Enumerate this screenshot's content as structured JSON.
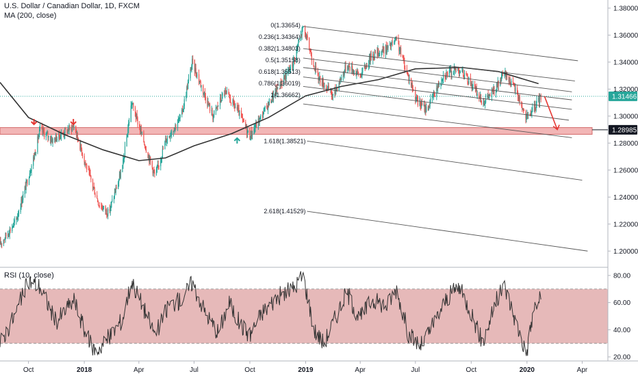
{
  "header": {
    "symbol_title": "U.S. Dollar / Canadian Dollar, 1D, FXCM",
    "ma_label": "MA (200, close)",
    "rsi_label": "RSI (10, close)"
  },
  "price_panel": {
    "ylim": [
      1.19,
      1.385
    ],
    "y_ticks": [
      "1.38000",
      "1.36000",
      "1.34000",
      "1.32000",
      "1.30000",
      "1.28000",
      "1.26000",
      "1.24000",
      "1.22000",
      "1.20000"
    ],
    "y_tick_values": [
      1.38,
      1.36,
      1.34,
      1.32,
      1.3,
      1.28,
      1.26,
      1.24,
      1.22,
      1.2
    ],
    "current_price_label": "1.31466",
    "current_price": 1.31466,
    "support_price_label": "1.28985",
    "support_price": 1.28985
  },
  "rsi_panel": {
    "ylim": [
      17,
      86
    ],
    "y_ticks": [
      "80.00",
      "60.00",
      "40.00",
      "20.00"
    ],
    "y_tick_values": [
      80,
      60,
      40,
      20
    ],
    "band": [
      30,
      70
    ]
  },
  "x_axis": {
    "labels": [
      "Oct",
      "2018",
      "Apr",
      "Jul",
      "Oct",
      "2019",
      "Apr",
      "Jul",
      "Oct",
      "2020",
      "Apr"
    ]
  },
  "fib_levels": [
    {
      "label": "0(1.33654)"
    },
    {
      "label": "0.236(1.34364)"
    },
    {
      "label": "0.382(1.34803)"
    },
    {
      "label": "0.5(1.35158)"
    },
    {
      "label": "0.618(1.35513)"
    },
    {
      "label": "0.786(1.36019)"
    },
    {
      "label": "1(1.36662)"
    },
    {
      "label": "1.618(1.38521)"
    },
    {
      "label": "2.618(1.41529)"
    }
  ],
  "colors": {
    "up": "#26a69a",
    "down": "#ef5350",
    "ma": "#333333",
    "support_zone": "#f2b6b6",
    "rsi_band": "#e0a7a7",
    "price_badge": "#26a69a",
    "support_badge": "#131722",
    "arrow_red": "#e53935",
    "arrow_teal": "#26a69a"
  },
  "chart_data": {
    "type": "candlestick",
    "title": "U.S. Dollar / Canadian Dollar, 1D, FXCM",
    "ma_series": {
      "name": "MA (200, close)",
      "points": [
        [
          "2017-08-15",
          1.325
        ],
        [
          "2017-10-01",
          1.299
        ],
        [
          "2017-12-01",
          1.286
        ],
        [
          "2018-02-01",
          1.275
        ],
        [
          "2018-04-01",
          1.267
        ],
        [
          "2018-05-15",
          1.269
        ],
        [
          "2018-07-01",
          1.278
        ],
        [
          "2018-09-01",
          1.287
        ],
        [
          "2018-11-01",
          1.299
        ],
        [
          "2019-01-01",
          1.315
        ],
        [
          "2019-03-01",
          1.322
        ],
        [
          "2019-05-01",
          1.327
        ],
        [
          "2019-07-01",
          1.335
        ],
        [
          "2019-09-15",
          1.336
        ],
        [
          "2019-11-15",
          1.333
        ],
        [
          "2020-01-20",
          1.324
        ]
      ]
    },
    "price_path": [
      [
        "2017-08-15",
        1.205
      ],
      [
        "2017-09-10",
        1.222
      ],
      [
        "2017-10-10",
        1.27
      ],
      [
        "2017-10-20",
        1.29
      ],
      [
        "2017-11-10",
        1.282
      ],
      [
        "2017-12-15",
        1.293
      ],
      [
        "2018-01-05",
        1.262
      ],
      [
        "2018-01-25",
        1.235
      ],
      [
        "2018-02-10",
        1.228
      ],
      [
        "2018-03-05",
        1.262
      ],
      [
        "2018-03-20",
        1.31
      ],
      [
        "2018-04-10",
        1.28
      ],
      [
        "2018-04-28",
        1.255
      ],
      [
        "2018-05-15",
        1.282
      ],
      [
        "2018-06-10",
        1.3
      ],
      [
        "2018-06-28",
        1.34
      ],
      [
        "2018-07-15",
        1.32
      ],
      [
        "2018-08-01",
        1.3
      ],
      [
        "2018-08-20",
        1.318
      ],
      [
        "2018-09-10",
        1.305
      ],
      [
        "2018-10-01",
        1.285
      ],
      [
        "2018-10-20",
        1.3
      ],
      [
        "2018-11-15",
        1.32
      ],
      [
        "2018-12-10",
        1.338
      ],
      [
        "2018-12-28",
        1.366
      ],
      [
        "2019-01-20",
        1.33
      ],
      [
        "2019-02-15",
        1.315
      ],
      [
        "2019-03-10",
        1.338
      ],
      [
        "2019-04-01",
        1.33
      ],
      [
        "2019-04-20",
        1.345
      ],
      [
        "2019-05-15",
        1.35
      ],
      [
        "2019-05-31",
        1.356
      ],
      [
        "2019-06-15",
        1.335
      ],
      [
        "2019-07-05",
        1.31
      ],
      [
        "2019-07-20",
        1.305
      ],
      [
        "2019-08-15",
        1.33
      ],
      [
        "2019-09-10",
        1.335
      ],
      [
        "2019-09-30",
        1.325
      ],
      [
        "2019-10-20",
        1.31
      ],
      [
        "2019-11-10",
        1.32
      ],
      [
        "2019-11-25",
        1.332
      ],
      [
        "2019-12-15",
        1.318
      ],
      [
        "2019-12-31",
        1.298
      ],
      [
        "2020-01-15",
        1.307
      ],
      [
        "2020-01-24",
        1.3147
      ]
    ],
    "rsi_path": [
      [
        "2017-08-15",
        30
      ],
      [
        "2017-09-10",
        52
      ],
      [
        "2017-10-01",
        76
      ],
      [
        "2017-10-20",
        72
      ],
      [
        "2017-11-15",
        46
      ],
      [
        "2017-12-15",
        62
      ],
      [
        "2018-01-05",
        35
      ],
      [
        "2018-01-20",
        24
      ],
      [
        "2018-02-10",
        34
      ],
      [
        "2018-03-05",
        48
      ],
      [
        "2018-03-20",
        76
      ],
      [
        "2018-04-10",
        55
      ],
      [
        "2018-04-28",
        36
      ],
      [
        "2018-05-20",
        58
      ],
      [
        "2018-06-10",
        62
      ],
      [
        "2018-06-28",
        75
      ],
      [
        "2018-07-20",
        52
      ],
      [
        "2018-08-10",
        38
      ],
      [
        "2018-08-28",
        60
      ],
      [
        "2018-09-15",
        44
      ],
      [
        "2018-10-01",
        36
      ],
      [
        "2018-10-20",
        52
      ],
      [
        "2018-11-15",
        64
      ],
      [
        "2018-12-10",
        70
      ],
      [
        "2018-12-28",
        80
      ],
      [
        "2019-01-15",
        40
      ],
      [
        "2019-01-31",
        30
      ],
      [
        "2019-02-20",
        50
      ],
      [
        "2019-03-10",
        68
      ],
      [
        "2019-03-31",
        48
      ],
      [
        "2019-04-20",
        62
      ],
      [
        "2019-05-15",
        58
      ],
      [
        "2019-05-31",
        70
      ],
      [
        "2019-06-20",
        36
      ],
      [
        "2019-07-10",
        28
      ],
      [
        "2019-07-31",
        44
      ],
      [
        "2019-08-20",
        62
      ],
      [
        "2019-09-10",
        72
      ],
      [
        "2019-09-30",
        54
      ],
      [
        "2019-10-20",
        30
      ],
      [
        "2019-11-10",
        60
      ],
      [
        "2019-11-25",
        72
      ],
      [
        "2019-12-15",
        44
      ],
      [
        "2019-12-31",
        22
      ],
      [
        "2020-01-12",
        55
      ],
      [
        "2020-01-24",
        64
      ]
    ],
    "channel_lines": [
      {
        "start": [
          "2018-12-28",
          1.3665
        ],
        "end": [
          "2020-03-25",
          1.341
        ]
      },
      {
        "start": [
          "2018-12-28",
          1.35
        ],
        "end": [
          "2020-03-20",
          1.326
        ]
      },
      {
        "start": [
          "2018-12-28",
          1.343
        ],
        "end": [
          "2020-03-15",
          1.318
        ]
      },
      {
        "start": [
          "2018-12-28",
          1.336
        ],
        "end": [
          "2020-03-15",
          1.312
        ]
      },
      {
        "start": [
          "2018-12-28",
          1.329
        ],
        "end": [
          "2020-03-15",
          1.305
        ]
      },
      {
        "start": [
          "2018-12-28",
          1.322
        ],
        "end": [
          "2020-03-10",
          1.297
        ]
      },
      {
        "start": [
          "2018-12-28",
          1.309
        ],
        "end": [
          "2020-03-15",
          1.284
        ]
      }
    ],
    "extension_lines": [
      {
        "label": "1.618(1.38521)",
        "start": [
          "2019-01-01",
          1.2815
        ],
        "end": [
          "2020-04-01",
          1.2525
        ]
      },
      {
        "label": "2.618(1.41529)",
        "start": [
          "2019-01-01",
          1.2295
        ],
        "end": [
          "2020-04-10",
          1.2
        ]
      }
    ],
    "support_zone": [
      1.2865,
      1.2915
    ],
    "forecast_arrow": {
      "from": [
        "2020-01-30",
        1.3145
      ],
      "to": [
        "2020-02-20",
        1.29
      ]
    },
    "xlabel": "",
    "ylabel": ""
  }
}
